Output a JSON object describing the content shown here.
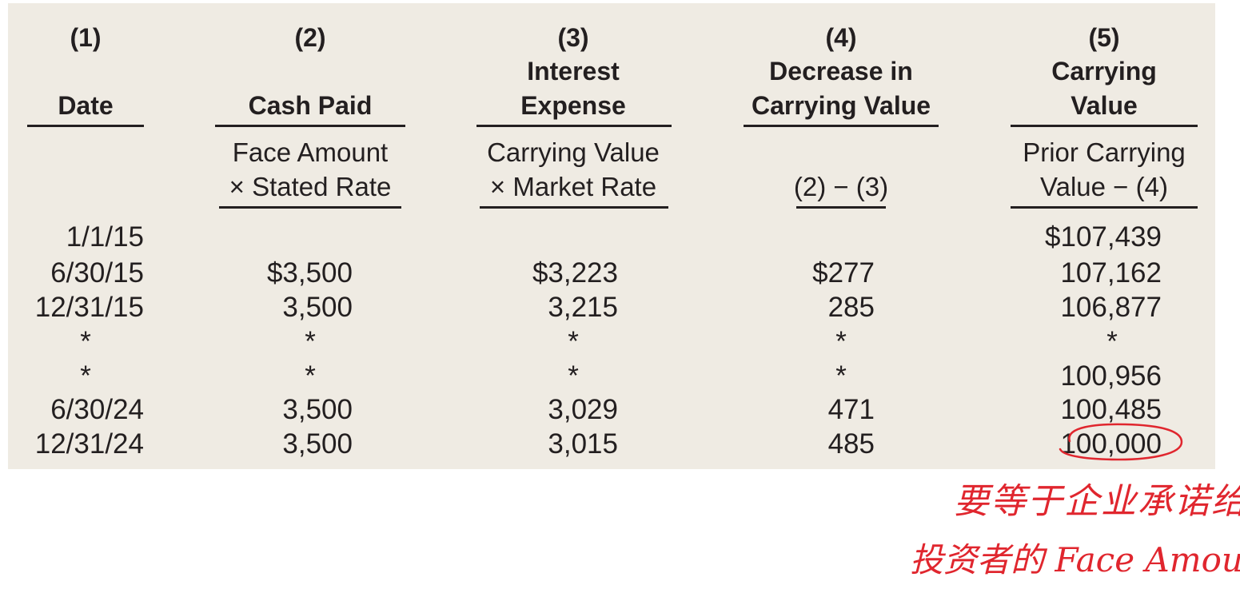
{
  "table": {
    "columns": [
      {
        "number": "(1)",
        "title_lines": [
          "Date"
        ],
        "formula_lines": []
      },
      {
        "number": "(2)",
        "title_lines": [
          "Cash Paid"
        ],
        "formula_lines": [
          "Face Amount",
          "× Stated Rate"
        ]
      },
      {
        "number": "(3)",
        "title_lines": [
          "Interest",
          "Expense"
        ],
        "formula_lines": [
          "Carrying Value",
          "× Market Rate"
        ]
      },
      {
        "number": "(4)",
        "title_lines": [
          "Decrease in",
          "Carrying Value"
        ],
        "formula_lines": [
          "(2) − (3)"
        ]
      },
      {
        "number": "(5)",
        "title_lines": [
          "Carrying",
          "Value"
        ],
        "formula_lines": [
          "Prior Carrying",
          "Value − (4)"
        ]
      }
    ],
    "rows": [
      [
        "1/1/15",
        "",
        "",
        "",
        "$107,439"
      ],
      [
        "6/30/15",
        "$3,500",
        "$3,223",
        "$277",
        "107,162"
      ],
      [
        "12/31/15",
        "3,500",
        "3,215",
        "285",
        "106,877"
      ],
      [
        "*",
        "*",
        "*",
        "*",
        "*"
      ],
      [
        "*",
        "*",
        "*",
        "*",
        "100,956"
      ],
      [
        "6/30/24",
        "3,500",
        "3,029",
        "471",
        "100,485"
      ],
      [
        "12/31/24",
        "3,500",
        "3,015",
        "485",
        "100,000"
      ]
    ]
  },
  "annotation": {
    "line1": "要等于企业承诺给",
    "line2": "投资者的 Face Amount",
    "color": "#e0262e"
  }
}
